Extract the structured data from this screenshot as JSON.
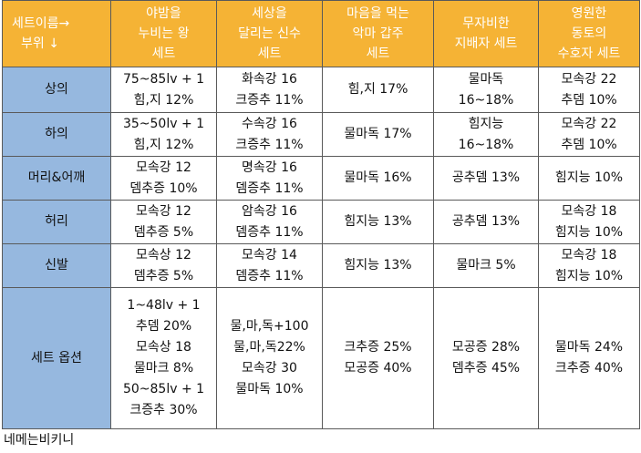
{
  "table": {
    "corner": [
      "세트이름→",
      "부위 ↓"
    ],
    "columns": [
      [
        "야밤을",
        "누비는 왕",
        "세트"
      ],
      [
        "세상을",
        "달리는 신수",
        "세트"
      ],
      [
        "마음을 먹는",
        "악마 갑주",
        "세트"
      ],
      [
        "무자비한",
        "지배자 세트"
      ],
      [
        "영원한",
        "동토의",
        "수호자 세트"
      ]
    ],
    "rows": [
      {
        "label": "상의",
        "cells": [
          [
            "75~85lv + 1",
            "힘,지 12%"
          ],
          [
            "화속강 16",
            "크증추 11%"
          ],
          [
            "힘,지 17%"
          ],
          [
            "물마독",
            "16~18%"
          ],
          [
            "모속강 22",
            "추뎀 10%"
          ]
        ]
      },
      {
        "label": "하의",
        "cells": [
          [
            "35~50lv + 1",
            "힘,지 12%"
          ],
          [
            "수속강 16",
            "크증추 11%"
          ],
          [
            "물마독 17%"
          ],
          [
            "힘지능",
            "16~18%"
          ],
          [
            "모속강 22",
            "추뎀 10%"
          ]
        ]
      },
      {
        "label": "머리&어깨",
        "cells": [
          [
            "모속강 12",
            "뎀추증 10%"
          ],
          [
            "명속강 16",
            "뎀증추 11%"
          ],
          [
            "물마독 16%"
          ],
          [
            "공추뎀 13%"
          ],
          [
            "힘지능 10%"
          ]
        ]
      },
      {
        "label": "허리",
        "cells": [
          [
            "모속강 12",
            "뎀추증 5%"
          ],
          [
            "암속강 16",
            "뎀증추 11%"
          ],
          [
            "힘지능 13%"
          ],
          [
            "공추뎀 13%"
          ],
          [
            "모속강 18",
            "힘지능 10%"
          ]
        ]
      },
      {
        "label": "신발",
        "cells": [
          [
            "모속상 12",
            "뎀추증 5%"
          ],
          [
            "모속강 14",
            "뎀증추 11%"
          ],
          [
            "힘지능 13%"
          ],
          [
            "물마크 5%"
          ],
          [
            "모속강 18",
            "힘지능 10%"
          ]
        ]
      },
      {
        "label": "세트 옵션",
        "cells": [
          [
            "1~48lv + 1",
            "추뎀 20%",
            "모속상 18",
            "물마크 8%",
            "50~85lv + 1",
            "크증추 30%"
          ],
          [
            "물,마,독+100",
            "물,마,독22%",
            "모속강 30",
            "물마독 10%"
          ],
          [
            "크추증 25%",
            "모공증 40%"
          ],
          [
            "모공증 28%",
            "뎀추증 45%"
          ],
          [
            "물마독 24%",
            "크추증 40%"
          ]
        ]
      }
    ]
  },
  "footer": "네메는비키니",
  "colors": {
    "header_bg": "#f5b335",
    "rowhead_bg": "#96b8df",
    "border": "#5a5a5a"
  }
}
